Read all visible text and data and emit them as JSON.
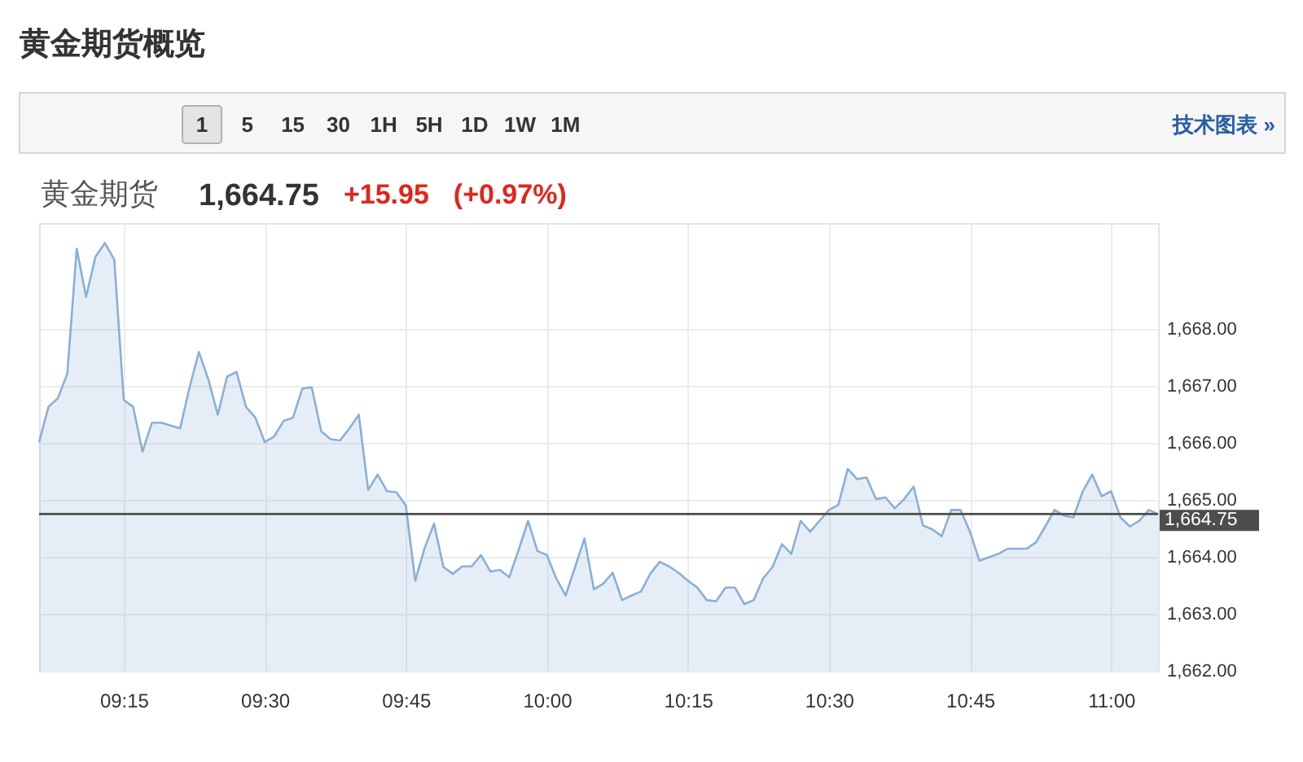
{
  "chart_data": {
    "type": "area",
    "title": "黄金期货概览",
    "subtitle": "黄金期货 1,664.75 +15.95 (+0.97%)",
    "annotations": [
      "1 5 15 30 1H 5H 1D 1W 1M",
      "技术图表 »"
    ],
    "x": [
      9.1,
      9.1167,
      9.1333,
      9.15,
      9.1667,
      9.1833,
      9.2,
      9.2167,
      9.2333,
      9.25,
      9.2667,
      9.2833,
      9.3,
      9.3167,
      9.3333,
      9.35,
      9.3667,
      9.3833,
      9.4,
      9.4167,
      9.4333,
      9.45,
      9.4667,
      9.4833,
      9.5,
      9.5167,
      9.5333,
      9.55,
      9.5667,
      9.5833,
      9.6,
      9.6167,
      9.6333,
      9.65,
      9.6667,
      9.6833,
      9.7,
      9.7167,
      9.7333,
      9.75,
      9.7667,
      9.7833,
      9.8,
      9.8167,
      9.8333,
      9.85,
      9.8667,
      9.8833,
      9.9,
      9.9167,
      9.9333,
      9.95,
      9.9667,
      9.9833,
      10,
      10.0167,
      10.0333,
      10.05,
      10.0667,
      10.0833,
      10.1,
      10.1167,
      10.1333,
      10.15,
      10.1667,
      10.1833,
      10.2,
      10.2167,
      10.2333,
      10.25,
      10.2667,
      10.2833,
      10.3,
      10.3167,
      10.3333,
      10.35,
      10.3667,
      10.3833,
      10.4,
      10.4167,
      10.4333,
      10.45,
      10.4667,
      10.4833,
      10.5,
      10.5167,
      10.5333,
      10.55,
      10.5667,
      10.5833,
      10.6,
      10.6167,
      10.6333,
      10.65,
      10.6667,
      10.6833,
      10.7,
      10.7167,
      10.7333,
      10.75,
      10.7667,
      10.7833,
      10.8,
      10.8167,
      10.8333,
      10.85,
      10.8667,
      10.8833,
      10.9,
      10.9167,
      10.9333,
      10.95,
      10.9667,
      10.9833,
      11,
      11.0167,
      11.0333,
      11.05,
      11.0667,
      11.0833
    ],
    "series": [
      {
        "color": "#88b0d8",
        "values": [
          1666.01,
          1666.63,
          1666.78,
          1667.21,
          1669.4,
          1668.56,
          1669.26,
          1669.5,
          1669.21,
          1666.75,
          1666.63,
          1665.84,
          1666.35,
          1666.35,
          1666.3,
          1666.25,
          1666.97,
          1667.59,
          1667.11,
          1666.49,
          1667.16,
          1667.24,
          1666.63,
          1666.44,
          1666.01,
          1666.11,
          1666.38,
          1666.44,
          1666.95,
          1666.97,
          1666.2,
          1666.06,
          1666.04,
          1666.25,
          1666.49,
          1665.17,
          1665.44,
          1665.15,
          1665.13,
          1664.9,
          1663.58,
          1664.15,
          1664.58,
          1663.82,
          1663.7,
          1663.83,
          1663.83,
          1664.03,
          1663.74,
          1663.77,
          1663.64,
          1664.12,
          1664.63,
          1664.1,
          1664.03,
          1663.62,
          1663.32,
          1663.82,
          1664.32,
          1663.43,
          1663.53,
          1663.72,
          1663.24,
          1663.32,
          1663.39,
          1663.7,
          1663.91,
          1663.83,
          1663.72,
          1663.58,
          1663.46,
          1663.24,
          1663.22,
          1663.46,
          1663.46,
          1663.17,
          1663.24,
          1663.62,
          1663.82,
          1664.22,
          1664.05,
          1664.63,
          1664.44,
          1664.63,
          1664.82,
          1664.91,
          1665.54,
          1665.36,
          1665.39,
          1665.01,
          1665.04,
          1664.85,
          1665.01,
          1665.23,
          1664.55,
          1664.48,
          1664.36,
          1664.82,
          1664.82,
          1664.44,
          1663.93,
          1663.99,
          1664.05,
          1664.14,
          1664.14,
          1664.14,
          1664.25,
          1664.53,
          1664.82,
          1664.72,
          1664.69,
          1665.15,
          1665.44,
          1665.06,
          1665.15,
          1664.69,
          1664.53,
          1664.63,
          1664.82,
          1664.75
        ]
      }
    ],
    "xlim": [
      9.1,
      11.0833
    ],
    "ylim": [
      1662,
      1669.85
    ],
    "xticks": [
      {
        "value": 9.25,
        "label": "09:15"
      },
      {
        "value": 9.5,
        "label": "09:30"
      },
      {
        "value": 9.75,
        "label": "09:45"
      },
      {
        "value": 10,
        "label": "10:00"
      },
      {
        "value": 10.25,
        "label": "10:15"
      },
      {
        "value": 10.5,
        "label": "10:30"
      },
      {
        "value": 10.75,
        "label": "10:45"
      },
      {
        "value": 11,
        "label": "11:00"
      }
    ],
    "yticks": [
      {
        "value": 1662,
        "label": "1,662.00"
      },
      {
        "value": 1663,
        "label": "1,663.00"
      },
      {
        "value": 1664,
        "label": "1,664.00"
      },
      {
        "value": 1665,
        "label": "1,665.00"
      },
      {
        "value": 1666,
        "label": "1,666.00"
      },
      {
        "value": 1667,
        "label": "1,667.00"
      },
      {
        "value": 1668,
        "label": "1,668.00"
      }
    ],
    "grid": true,
    "ref_lines": [
      {
        "axis": "y",
        "value": 1664.75,
        "label": "1,664.75",
        "color": "#4d4d4d"
      }
    ]
  }
}
